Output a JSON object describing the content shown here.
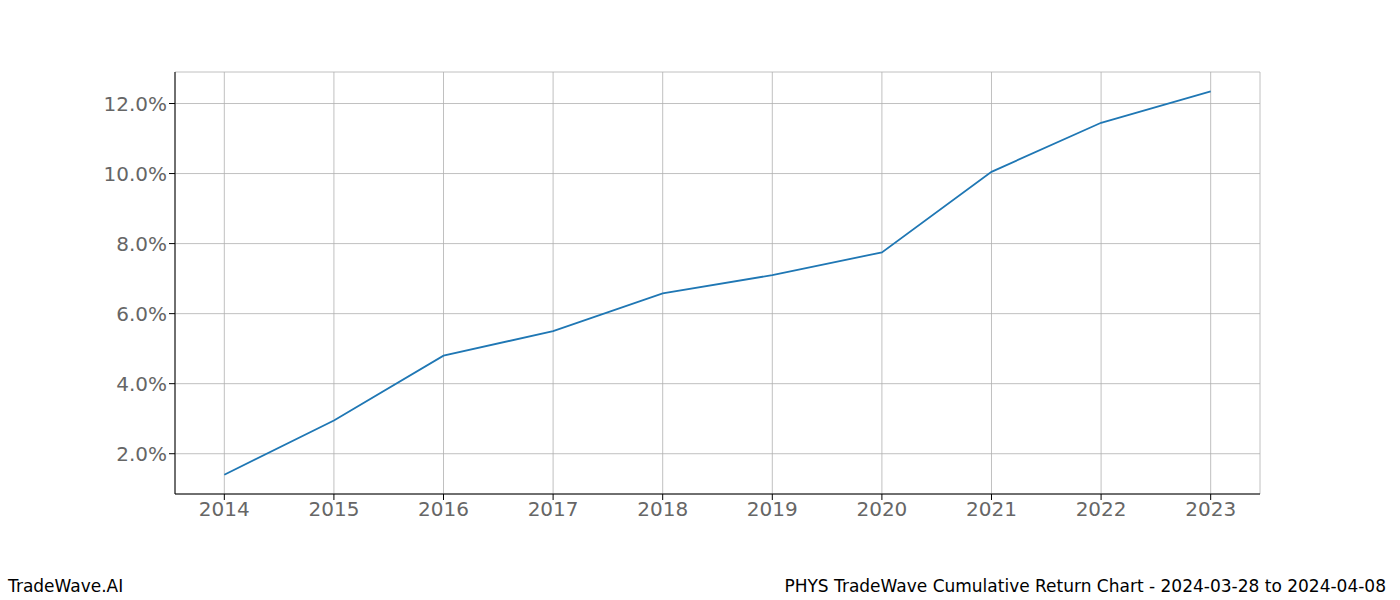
{
  "chart_data": {
    "type": "line",
    "title": "PHYS TradeWave Cumulative Return Chart - 2024-03-28 to 2024-04-08",
    "annotations": [
      "TradeWave.AI"
    ],
    "x": [
      2014,
      2015,
      2016,
      2017,
      2018,
      2019,
      2020,
      2021,
      2022,
      2023
    ],
    "values": [
      1.4,
      2.95,
      4.8,
      5.5,
      6.58,
      7.1,
      7.75,
      10.05,
      11.45,
      12.35
    ],
    "color": "#1f77b4",
    "xlim": [
      2013.55,
      2023.45
    ],
    "xticks": [
      2014,
      2015,
      2016,
      2017,
      2018,
      2019,
      2020,
      2021,
      2022,
      2023
    ],
    "ylim": [
      0.85,
      12.9
    ],
    "yticks": [
      {
        "value": 2,
        "label": "2.0%"
      },
      {
        "value": 4,
        "label": "4.0%"
      },
      {
        "value": 6,
        "label": "6.0%"
      },
      {
        "value": 8,
        "label": "8.0%"
      },
      {
        "value": 10,
        "label": "10.0%"
      },
      {
        "value": 12,
        "label": "12.0%"
      }
    ],
    "grid": true
  }
}
